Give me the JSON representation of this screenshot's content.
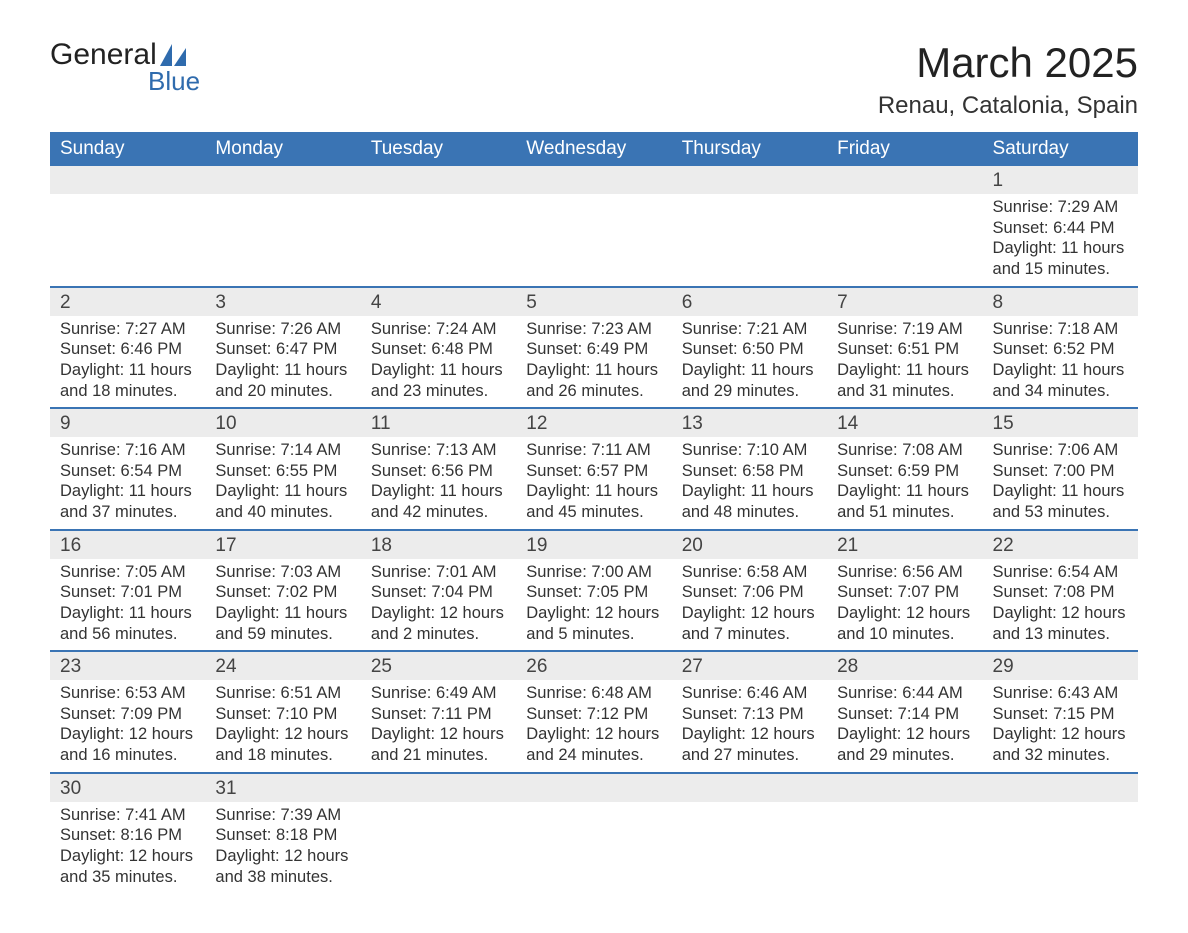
{
  "brand": {
    "word1": "General",
    "word2": "Blue"
  },
  "title": "March 2025",
  "location": "Renau, Catalonia, Spain",
  "colors": {
    "header_bg": "#3a74b4",
    "header_text": "#ffffff",
    "row_sep": "#3a74b4",
    "daynum_bg": "#ececec",
    "text": "#333333",
    "page_bg": "#ffffff",
    "brand_blue": "#2f6bad"
  },
  "type": "calendar-table",
  "columns": [
    "Sunday",
    "Monday",
    "Tuesday",
    "Wednesday",
    "Thursday",
    "Friday",
    "Saturday"
  ],
  "font": {
    "family": "Arial",
    "th_size_pt": 14,
    "title_size_pt": 32,
    "body_size_pt": 12
  },
  "weeks": [
    [
      null,
      null,
      null,
      null,
      null,
      null,
      {
        "n": "1",
        "sunrise": "Sunrise: 7:29 AM",
        "sunset": "Sunset: 6:44 PM",
        "dl1": "Daylight: 11 hours",
        "dl2": "and 15 minutes."
      }
    ],
    [
      {
        "n": "2",
        "sunrise": "Sunrise: 7:27 AM",
        "sunset": "Sunset: 6:46 PM",
        "dl1": "Daylight: 11 hours",
        "dl2": "and 18 minutes."
      },
      {
        "n": "3",
        "sunrise": "Sunrise: 7:26 AM",
        "sunset": "Sunset: 6:47 PM",
        "dl1": "Daylight: 11 hours",
        "dl2": "and 20 minutes."
      },
      {
        "n": "4",
        "sunrise": "Sunrise: 7:24 AM",
        "sunset": "Sunset: 6:48 PM",
        "dl1": "Daylight: 11 hours",
        "dl2": "and 23 minutes."
      },
      {
        "n": "5",
        "sunrise": "Sunrise: 7:23 AM",
        "sunset": "Sunset: 6:49 PM",
        "dl1": "Daylight: 11 hours",
        "dl2": "and 26 minutes."
      },
      {
        "n": "6",
        "sunrise": "Sunrise: 7:21 AM",
        "sunset": "Sunset: 6:50 PM",
        "dl1": "Daylight: 11 hours",
        "dl2": "and 29 minutes."
      },
      {
        "n": "7",
        "sunrise": "Sunrise: 7:19 AM",
        "sunset": "Sunset: 6:51 PM",
        "dl1": "Daylight: 11 hours",
        "dl2": "and 31 minutes."
      },
      {
        "n": "8",
        "sunrise": "Sunrise: 7:18 AM",
        "sunset": "Sunset: 6:52 PM",
        "dl1": "Daylight: 11 hours",
        "dl2": "and 34 minutes."
      }
    ],
    [
      {
        "n": "9",
        "sunrise": "Sunrise: 7:16 AM",
        "sunset": "Sunset: 6:54 PM",
        "dl1": "Daylight: 11 hours",
        "dl2": "and 37 minutes."
      },
      {
        "n": "10",
        "sunrise": "Sunrise: 7:14 AM",
        "sunset": "Sunset: 6:55 PM",
        "dl1": "Daylight: 11 hours",
        "dl2": "and 40 minutes."
      },
      {
        "n": "11",
        "sunrise": "Sunrise: 7:13 AM",
        "sunset": "Sunset: 6:56 PM",
        "dl1": "Daylight: 11 hours",
        "dl2": "and 42 minutes."
      },
      {
        "n": "12",
        "sunrise": "Sunrise: 7:11 AM",
        "sunset": "Sunset: 6:57 PM",
        "dl1": "Daylight: 11 hours",
        "dl2": "and 45 minutes."
      },
      {
        "n": "13",
        "sunrise": "Sunrise: 7:10 AM",
        "sunset": "Sunset: 6:58 PM",
        "dl1": "Daylight: 11 hours",
        "dl2": "and 48 minutes."
      },
      {
        "n": "14",
        "sunrise": "Sunrise: 7:08 AM",
        "sunset": "Sunset: 6:59 PM",
        "dl1": "Daylight: 11 hours",
        "dl2": "and 51 minutes."
      },
      {
        "n": "15",
        "sunrise": "Sunrise: 7:06 AM",
        "sunset": "Sunset: 7:00 PM",
        "dl1": "Daylight: 11 hours",
        "dl2": "and 53 minutes."
      }
    ],
    [
      {
        "n": "16",
        "sunrise": "Sunrise: 7:05 AM",
        "sunset": "Sunset: 7:01 PM",
        "dl1": "Daylight: 11 hours",
        "dl2": "and 56 minutes."
      },
      {
        "n": "17",
        "sunrise": "Sunrise: 7:03 AM",
        "sunset": "Sunset: 7:02 PM",
        "dl1": "Daylight: 11 hours",
        "dl2": "and 59 minutes."
      },
      {
        "n": "18",
        "sunrise": "Sunrise: 7:01 AM",
        "sunset": "Sunset: 7:04 PM",
        "dl1": "Daylight: 12 hours",
        "dl2": "and 2 minutes."
      },
      {
        "n": "19",
        "sunrise": "Sunrise: 7:00 AM",
        "sunset": "Sunset: 7:05 PM",
        "dl1": "Daylight: 12 hours",
        "dl2": "and 5 minutes."
      },
      {
        "n": "20",
        "sunrise": "Sunrise: 6:58 AM",
        "sunset": "Sunset: 7:06 PM",
        "dl1": "Daylight: 12 hours",
        "dl2": "and 7 minutes."
      },
      {
        "n": "21",
        "sunrise": "Sunrise: 6:56 AM",
        "sunset": "Sunset: 7:07 PM",
        "dl1": "Daylight: 12 hours",
        "dl2": "and 10 minutes."
      },
      {
        "n": "22",
        "sunrise": "Sunrise: 6:54 AM",
        "sunset": "Sunset: 7:08 PM",
        "dl1": "Daylight: 12 hours",
        "dl2": "and 13 minutes."
      }
    ],
    [
      {
        "n": "23",
        "sunrise": "Sunrise: 6:53 AM",
        "sunset": "Sunset: 7:09 PM",
        "dl1": "Daylight: 12 hours",
        "dl2": "and 16 minutes."
      },
      {
        "n": "24",
        "sunrise": "Sunrise: 6:51 AM",
        "sunset": "Sunset: 7:10 PM",
        "dl1": "Daylight: 12 hours",
        "dl2": "and 18 minutes."
      },
      {
        "n": "25",
        "sunrise": "Sunrise: 6:49 AM",
        "sunset": "Sunset: 7:11 PM",
        "dl1": "Daylight: 12 hours",
        "dl2": "and 21 minutes."
      },
      {
        "n": "26",
        "sunrise": "Sunrise: 6:48 AM",
        "sunset": "Sunset: 7:12 PM",
        "dl1": "Daylight: 12 hours",
        "dl2": "and 24 minutes."
      },
      {
        "n": "27",
        "sunrise": "Sunrise: 6:46 AM",
        "sunset": "Sunset: 7:13 PM",
        "dl1": "Daylight: 12 hours",
        "dl2": "and 27 minutes."
      },
      {
        "n": "28",
        "sunrise": "Sunrise: 6:44 AM",
        "sunset": "Sunset: 7:14 PM",
        "dl1": "Daylight: 12 hours",
        "dl2": "and 29 minutes."
      },
      {
        "n": "29",
        "sunrise": "Sunrise: 6:43 AM",
        "sunset": "Sunset: 7:15 PM",
        "dl1": "Daylight: 12 hours",
        "dl2": "and 32 minutes."
      }
    ],
    [
      {
        "n": "30",
        "sunrise": "Sunrise: 7:41 AM",
        "sunset": "Sunset: 8:16 PM",
        "dl1": "Daylight: 12 hours",
        "dl2": "and 35 minutes."
      },
      {
        "n": "31",
        "sunrise": "Sunrise: 7:39 AM",
        "sunset": "Sunset: 8:18 PM",
        "dl1": "Daylight: 12 hours",
        "dl2": "and 38 minutes."
      },
      null,
      null,
      null,
      null,
      null
    ]
  ]
}
